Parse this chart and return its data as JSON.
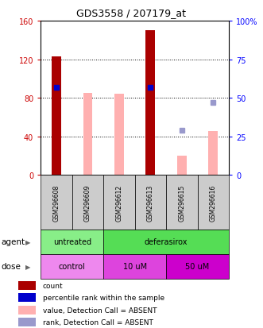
{
  "title": "GDS3558 / 207179_at",
  "samples": [
    "GSM296608",
    "GSM296609",
    "GSM296612",
    "GSM296613",
    "GSM296615",
    "GSM296616"
  ],
  "count_values": [
    123,
    0,
    0,
    150,
    0,
    0
  ],
  "count_color": "#aa0000",
  "value_absent_bars": [
    0,
    85,
    84,
    0,
    20,
    46
  ],
  "value_absent_color": "#ffb0b0",
  "percentile_rank_present": [
    57,
    0,
    0,
    57,
    0,
    0
  ],
  "percentile_rank_present_color": "#0000cc",
  "rank_absent_values": [
    0,
    0,
    0,
    0,
    29,
    47
  ],
  "rank_absent_color": "#9999cc",
  "ylim_left": [
    0,
    160
  ],
  "ylim_right": [
    0,
    100
  ],
  "yticks_left": [
    0,
    40,
    80,
    120,
    160
  ],
  "ytick_labels_left": [
    "0",
    "40",
    "80",
    "120",
    "160"
  ],
  "yticks_right": [
    0,
    25,
    50,
    75,
    100
  ],
  "ytick_labels_right": [
    "0",
    "25",
    "50",
    "75",
    "100%"
  ],
  "agent_groups": [
    {
      "text": "untreated",
      "start": 0,
      "end": 1,
      "color": "#88ee88"
    },
    {
      "text": "deferasirox",
      "start": 2,
      "end": 5,
      "color": "#55dd55"
    }
  ],
  "dose_groups": [
    {
      "text": "control",
      "start": 0,
      "end": 1,
      "color": "#ee88ee"
    },
    {
      "text": "10 uM",
      "start": 2,
      "end": 3,
      "color": "#dd44dd"
    },
    {
      "text": "50 uM",
      "start": 4,
      "end": 5,
      "color": "#cc00cc"
    }
  ],
  "legend_items": [
    {
      "label": "count",
      "color": "#aa0000"
    },
    {
      "label": "percentile rank within the sample",
      "color": "#0000cc"
    },
    {
      "label": "value, Detection Call = ABSENT",
      "color": "#ffb0b0"
    },
    {
      "label": "rank, Detection Call = ABSENT",
      "color": "#9999cc"
    }
  ],
  "bar_width": 0.3,
  "sample_box_color": "#cccccc",
  "agent_row_label": "agent",
  "dose_row_label": "dose",
  "bg_color": "#ffffff"
}
